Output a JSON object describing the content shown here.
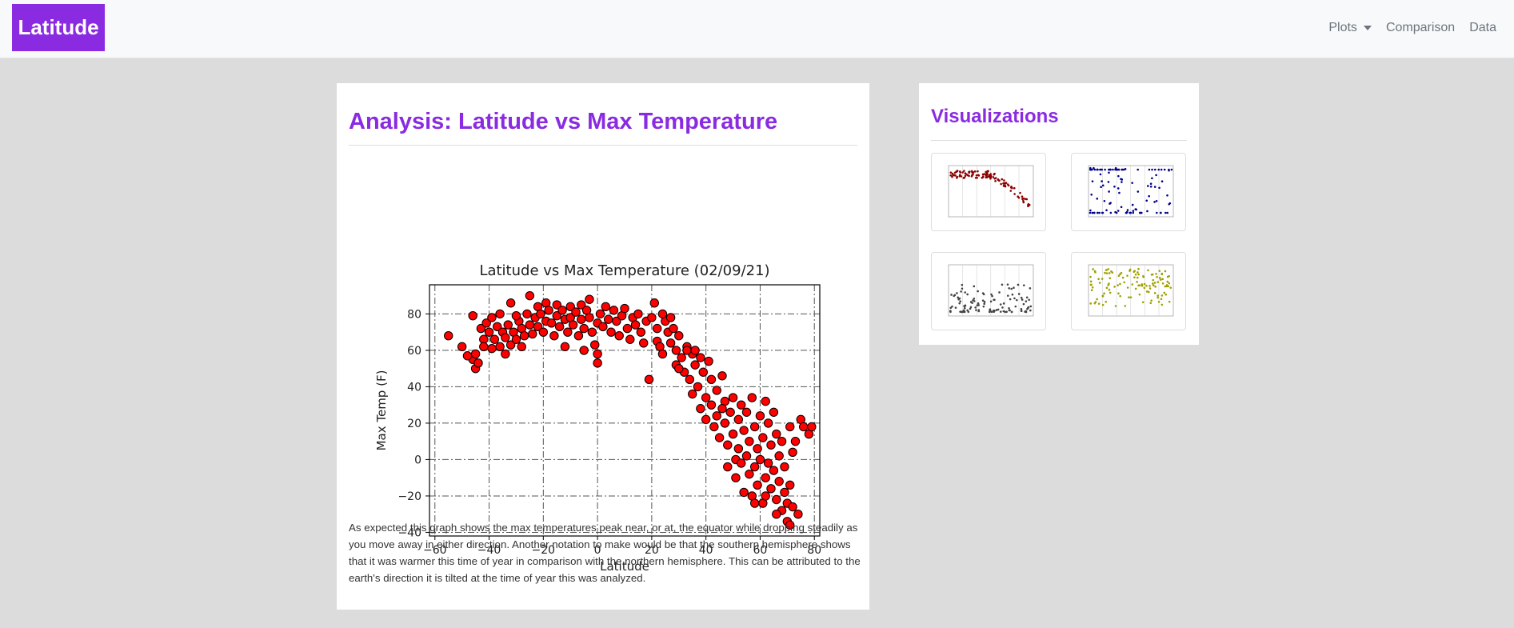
{
  "nav": {
    "brand": "Latitude",
    "plots_label": "Plots",
    "comparison_label": "Comparison",
    "data_label": "Data"
  },
  "main": {
    "title": "Analysis: Latitude vs Max Temperature",
    "description": "As expected this graph shows the max temperatures peak near, or at, the equator while dropping steadily as you move away in either direction. Another notation to make would be that the southern hemisphere shows that it was warmer this time of year in comparison with the northern hemisphere. This can be attributed to the earth's direction it is tilted at the time of year this was analyzed."
  },
  "sidebar": {
    "title": "Visualizations",
    "thumbnails": [
      {
        "name": "max-temp-thumbnail",
        "color": "#8b0000"
      },
      {
        "name": "cloudiness-thumbnail",
        "color": "#00008b"
      },
      {
        "name": "wind-speed-thumbnail",
        "color": "#444444"
      },
      {
        "name": "humidity-thumbnail",
        "color": "#a0a000"
      }
    ]
  },
  "colors": {
    "accent": "#8a2be2",
    "marker_fill": "#ff0000",
    "marker_edge": "#000000"
  },
  "chart_data": {
    "type": "scatter",
    "title": "Latitude vs Max Temperature (02/09/21)",
    "xlabel": "Latitude",
    "ylabel": "Max Temp (F)",
    "xlim": [
      -62,
      82
    ],
    "ylim": [
      -42,
      96
    ],
    "xticks": [
      -60,
      -40,
      -20,
      0,
      20,
      40,
      60,
      80
    ],
    "yticks": [
      -40,
      -20,
      0,
      20,
      40,
      60,
      80
    ],
    "xtick_labels": [
      "−60",
      "−40",
      "−20",
      "0",
      "20",
      "40",
      "60",
      "80"
    ],
    "ytick_labels": [
      "−40",
      "−20",
      "0",
      "20",
      "40",
      "60",
      "80"
    ],
    "grid": true,
    "series": [
      {
        "points": [
          [
            -55,
            68
          ],
          [
            -46,
            79
          ],
          [
            -46,
            55
          ],
          [
            -45,
            50
          ],
          [
            -45,
            58
          ],
          [
            -44,
            53
          ],
          [
            -43,
            72
          ],
          [
            -42,
            66
          ],
          [
            -42,
            62
          ],
          [
            -41,
            75
          ],
          [
            -40,
            70
          ],
          [
            -39,
            78
          ],
          [
            -39,
            61
          ],
          [
            -38,
            66
          ],
          [
            -37,
            73
          ],
          [
            -36,
            80
          ],
          [
            -36,
            62
          ],
          [
            -35,
            70
          ],
          [
            -34,
            67
          ],
          [
            -34,
            58
          ],
          [
            -33,
            74
          ],
          [
            -32,
            63
          ],
          [
            -32,
            86
          ],
          [
            -31,
            70
          ],
          [
            -30,
            66
          ],
          [
            -29,
            76
          ],
          [
            -28,
            72
          ],
          [
            -27,
            68
          ],
          [
            -26,
            80
          ],
          [
            -25,
            90
          ],
          [
            -25,
            74
          ],
          [
            -24,
            69
          ],
          [
            -23,
            78
          ],
          [
            -22,
            84
          ],
          [
            -22,
            73
          ],
          [
            -21,
            80
          ],
          [
            -20,
            70
          ],
          [
            -19,
            86
          ],
          [
            -19,
            76
          ],
          [
            -18,
            82
          ],
          [
            -17,
            75
          ],
          [
            -16,
            68
          ],
          [
            -15,
            85
          ],
          [
            -15,
            79
          ],
          [
            -14,
            73
          ],
          [
            -13,
            82
          ],
          [
            -12,
            77
          ],
          [
            -11,
            70
          ],
          [
            -10,
            84
          ],
          [
            -10,
            78
          ],
          [
            -9,
            74
          ],
          [
            -8,
            81
          ],
          [
            -7,
            68
          ],
          [
            -6,
            85
          ],
          [
            -6,
            77
          ],
          [
            -5,
            72
          ],
          [
            -4,
            82
          ],
          [
            -3,
            88
          ],
          [
            -3,
            78
          ],
          [
            -2,
            70
          ],
          [
            -1,
            63
          ],
          [
            0,
            75
          ],
          [
            0,
            58
          ],
          [
            0,
            53
          ],
          [
            1,
            80
          ],
          [
            2,
            73
          ],
          [
            3,
            84
          ],
          [
            4,
            77
          ],
          [
            5,
            70
          ],
          [
            6,
            82
          ],
          [
            7,
            76
          ],
          [
            8,
            68
          ],
          [
            9,
            79
          ],
          [
            10,
            83
          ],
          [
            11,
            72
          ],
          [
            12,
            66
          ],
          [
            13,
            78
          ],
          [
            14,
            74
          ],
          [
            15,
            80
          ],
          [
            16,
            70
          ],
          [
            17,
            64
          ],
          [
            18,
            76
          ],
          [
            19,
            44
          ],
          [
            20,
            78
          ],
          [
            21,
            86
          ],
          [
            22,
            72
          ],
          [
            22,
            65
          ],
          [
            23,
            62
          ],
          [
            24,
            58
          ],
          [
            25,
            76
          ],
          [
            26,
            70
          ],
          [
            27,
            64
          ],
          [
            28,
            72
          ],
          [
            29,
            60
          ],
          [
            29,
            52
          ],
          [
            30,
            68
          ],
          [
            31,
            56
          ],
          [
            32,
            48
          ],
          [
            33,
            62
          ],
          [
            34,
            44
          ],
          [
            35,
            58
          ],
          [
            35,
            36
          ],
          [
            36,
            52
          ],
          [
            37,
            40
          ],
          [
            38,
            56
          ],
          [
            38,
            28
          ],
          [
            39,
            48
          ],
          [
            40,
            34
          ],
          [
            40,
            22
          ],
          [
            41,
            54
          ],
          [
            42,
            44
          ],
          [
            42,
            30
          ],
          [
            43,
            18
          ],
          [
            44,
            38
          ],
          [
            44,
            24
          ],
          [
            45,
            12
          ],
          [
            46,
            46
          ],
          [
            47,
            32
          ],
          [
            47,
            20
          ],
          [
            48,
            8
          ],
          [
            48,
            -4
          ],
          [
            49,
            26
          ],
          [
            50,
            34
          ],
          [
            50,
            14
          ],
          [
            51,
            0
          ],
          [
            51,
            -10
          ],
          [
            52,
            22
          ],
          [
            52,
            6
          ],
          [
            53,
            30
          ],
          [
            53,
            -2
          ],
          [
            54,
            16
          ],
          [
            54,
            -18
          ],
          [
            55,
            26
          ],
          [
            55,
            2
          ],
          [
            56,
            10
          ],
          [
            56,
            -8
          ],
          [
            57,
            34
          ],
          [
            57,
            -20
          ],
          [
            58,
            18
          ],
          [
            58,
            -4
          ],
          [
            59,
            6
          ],
          [
            59,
            -14
          ],
          [
            60,
            24
          ],
          [
            60,
            0
          ],
          [
            61,
            -24
          ],
          [
            61,
            12
          ],
          [
            62,
            32
          ],
          [
            62,
            -10
          ],
          [
            63,
            -2
          ],
          [
            63,
            20
          ],
          [
            64,
            8
          ],
          [
            64,
            -16
          ],
          [
            65,
            26
          ],
          [
            65,
            -6
          ],
          [
            66,
            14
          ],
          [
            66,
            -22
          ],
          [
            67,
            2
          ],
          [
            67,
            -12
          ],
          [
            68,
            -28
          ],
          [
            68,
            10
          ],
          [
            69,
            -18
          ],
          [
            69,
            -4
          ],
          [
            70,
            -34
          ],
          [
            70,
            -24
          ],
          [
            71,
            18
          ],
          [
            71,
            -14
          ],
          [
            72,
            4
          ],
          [
            72,
            -26
          ],
          [
            73,
            10
          ],
          [
            74,
            -30
          ],
          [
            75,
            22
          ],
          [
            76,
            18
          ],
          [
            78,
            14
          ],
          [
            79,
            18
          ],
          [
            -50,
            62
          ],
          [
            -48,
            57
          ],
          [
            -30,
            79
          ],
          [
            -28,
            62
          ],
          [
            -12,
            62
          ],
          [
            -5,
            60
          ],
          [
            24,
            80
          ],
          [
            27,
            78
          ],
          [
            30,
            50
          ],
          [
            33,
            60
          ],
          [
            36,
            60
          ],
          [
            46,
            28
          ],
          [
            58,
            -24
          ],
          [
            62,
            -20
          ],
          [
            66,
            -30
          ],
          [
            71,
            -36
          ]
        ]
      }
    ]
  }
}
